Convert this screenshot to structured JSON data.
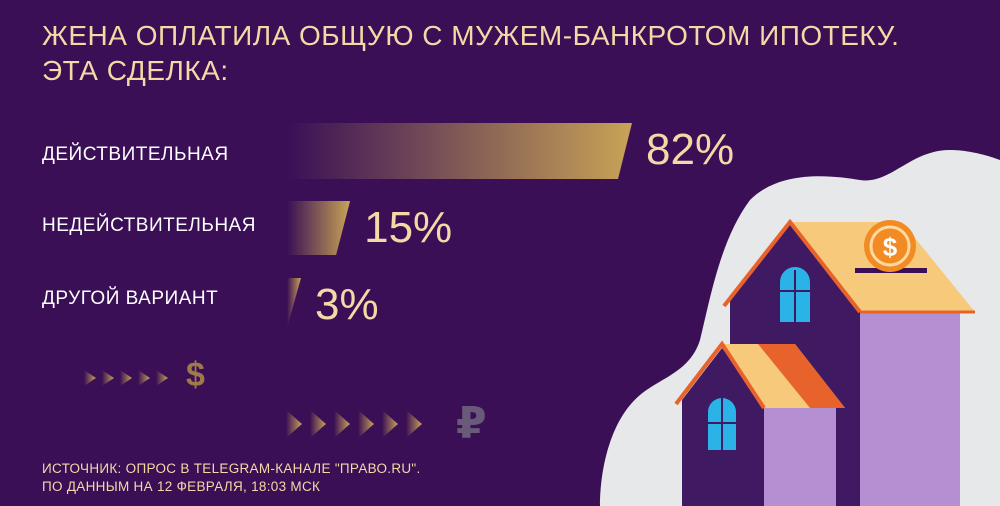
{
  "title": {
    "line1": "ЖЕНА ОПЛАТИЛА ОБЩУЮ С МУЖЕМ-БАНКРОТОМ ИПОТЕКУ.",
    "line2": "ЭТА СДЕЛКА:"
  },
  "chart_data": {
    "type": "bar",
    "orientation": "horizontal",
    "categories": [
      "ДЕЙСТВИТЕЛЬНАЯ",
      "НЕДЕЙСТВИТЕЛЬНАЯ",
      "ДРУГОЙ ВАРИАНТ"
    ],
    "values": [
      82,
      15,
      3
    ],
    "value_labels": [
      "82%",
      "15%",
      "3%"
    ],
    "unit": "%",
    "xlim": [
      0,
      82
    ],
    "bar_color": "#c8a356",
    "label_color": "#f4d9a6"
  },
  "source": {
    "line1": "ИСТОЧНИК: ОПРОС В TELEGRAM-КАНАЛЕ \"ПРАВО.RU\".",
    "line2": "ПО ДАННЫМ НА 12 ФЕВРАЛЯ, 18:03 МСК"
  },
  "decor": {
    "currency_1": "$",
    "currency_2": "₽",
    "icons": [
      "arrow-row-icon",
      "dollar-icon",
      "ruble-icon",
      "house-icon",
      "coin-icon"
    ]
  },
  "colors": {
    "background": "#3a0f56",
    "accent": "#f4d9a6",
    "bar": "#c8a356",
    "cloud": "#e6e8ea",
    "house_wall": "#3f1a63",
    "house_side": "#b48fd1",
    "roof": "#f7c97b",
    "roof_edge": "#e8632b",
    "window": "#2bb3e8",
    "coin": "#f28b24"
  }
}
